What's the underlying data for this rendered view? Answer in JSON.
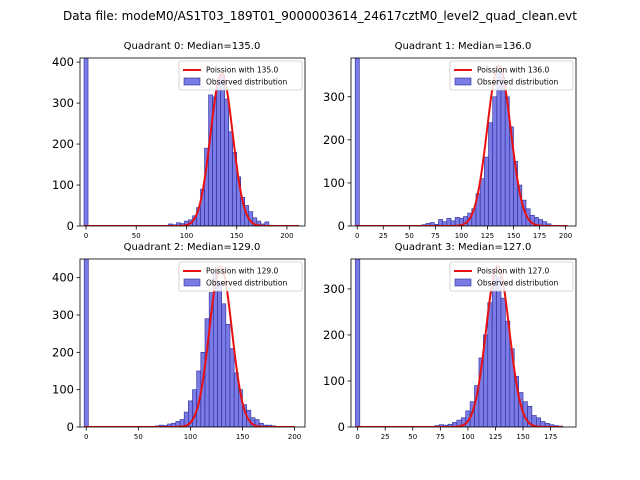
{
  "colors": {
    "bar_fill": "#7b7be6",
    "bar_edge": "#2a2a9a",
    "fit_line": "#e81010",
    "axes": "#000000",
    "background": "#ffffff"
  },
  "chart_data": {
    "suptitle": "Data file: modeM0/AS1T03_189T01_9000003614_24617cztM0_level2_quad_clean.evt",
    "panels": [
      {
        "type": "bar",
        "title": "Quadrant 0: Median=135.0",
        "median": 135.0,
        "xlim": [
          -6,
          218
        ],
        "ylim": [
          0,
          410
        ],
        "xticks": [
          0,
          50,
          100,
          150,
          200
        ],
        "yticks": [
          0,
          100,
          200,
          300,
          400
        ],
        "bin_width": 4,
        "bar_starts": [
          -2,
          82,
          86,
          90,
          94,
          98,
          102,
          106,
          110,
          114,
          118,
          122,
          126,
          130,
          134,
          138,
          142,
          146,
          150,
          154,
          158,
          162,
          166,
          170,
          174,
          178,
          182
        ],
        "bar_heights": [
          410,
          5,
          3,
          8,
          6,
          12,
          15,
          25,
          45,
          90,
          190,
          320,
          315,
          360,
          370,
          310,
          230,
          180,
          120,
          70,
          50,
          35,
          20,
          12,
          5,
          10,
          2
        ],
        "fit_center": 135.0,
        "fit_peak": 372,
        "fit_sigma": 11.0,
        "fit_range": [
          -2,
          212
        ],
        "legend": {
          "fit": "Poission with 135.0",
          "observed": "Observed distribution"
        }
      },
      {
        "type": "bar",
        "title": "Quadrant 1: Median=136.0",
        "median": 136.0,
        "xlim": [
          -6,
          210
        ],
        "ylim": [
          0,
          390
        ],
        "xticks": [
          0,
          25,
          50,
          75,
          100,
          125,
          150,
          175,
          200
        ],
        "yticks": [
          0,
          100,
          200,
          300
        ],
        "bin_width": 4,
        "bar_starts": [
          -2,
          62,
          66,
          70,
          74,
          78,
          82,
          86,
          90,
          94,
          98,
          102,
          106,
          110,
          114,
          118,
          122,
          126,
          130,
          134,
          138,
          142,
          146,
          150,
          154,
          158,
          162,
          166,
          170,
          174,
          178,
          182
        ],
        "bar_heights": [
          390,
          3,
          6,
          8,
          4,
          15,
          10,
          18,
          12,
          20,
          18,
          22,
          30,
          40,
          75,
          110,
          160,
          240,
          300,
          360,
          345,
          300,
          230,
          150,
          95,
          60,
          40,
          25,
          20,
          15,
          10,
          5
        ],
        "fit_center": 136.0,
        "fit_peak": 372,
        "fit_sigma": 11.3,
        "fit_range": [
          -2,
          202
        ],
        "legend": {
          "fit": "Poission with 136.0",
          "observed": "Observed distribution"
        }
      },
      {
        "type": "bar",
        "title": "Quadrant 2: Median=129.0",
        "median": 129.0,
        "xlim": [
          -6,
          210
        ],
        "ylim": [
          0,
          450
        ],
        "xticks": [
          0,
          50,
          100,
          150,
          200
        ],
        "yticks": [
          0,
          100,
          200,
          300,
          400
        ],
        "bin_width": 4,
        "bar_starts": [
          -2,
          66,
          70,
          74,
          78,
          82,
          86,
          90,
          94,
          98,
          102,
          106,
          110,
          114,
          118,
          122,
          126,
          130,
          134,
          138,
          142,
          146,
          150,
          154,
          158,
          162,
          166,
          170,
          174,
          178
        ],
        "bar_heights": [
          450,
          3,
          5,
          4,
          8,
          10,
          15,
          20,
          40,
          70,
          100,
          150,
          200,
          290,
          360,
          410,
          390,
          330,
          275,
          210,
          145,
          100,
          60,
          45,
          25,
          20,
          10,
          5,
          5,
          3
        ],
        "fit_center": 129.0,
        "fit_peak": 430,
        "fit_sigma": 10.8,
        "fit_range": [
          -2,
          200
        ],
        "legend": {
          "fit": "Poission with 129.0",
          "observed": "Observed distribution"
        }
      },
      {
        "type": "bar",
        "title": "Quadrant 3: Median=127.0",
        "median": 127.0,
        "xlim": [
          -6,
          198
        ],
        "ylim": [
          0,
          365
        ],
        "xticks": [
          0,
          25,
          50,
          75,
          100,
          125,
          150,
          175
        ],
        "yticks": [
          0,
          100,
          200,
          300
        ],
        "bin_width": 4,
        "bar_starts": [
          -2,
          70,
          74,
          78,
          82,
          86,
          90,
          94,
          98,
          102,
          106,
          110,
          114,
          118,
          122,
          126,
          130,
          134,
          138,
          142,
          146,
          150,
          154,
          158,
          162,
          166,
          170,
          174,
          178,
          182
        ],
        "bar_heights": [
          365,
          3,
          5,
          4,
          6,
          10,
          15,
          20,
          35,
          55,
          90,
          150,
          200,
          270,
          330,
          325,
          280,
          230,
          170,
          110,
          75,
          55,
          45,
          25,
          20,
          12,
          8,
          5,
          3,
          2
        ],
        "fit_center": 127.0,
        "fit_peak": 350,
        "fit_sigma": 10.5,
        "fit_range": [
          -2,
          185
        ],
        "legend": {
          "fit": "Poission with 127.0",
          "observed": "Observed distribution"
        }
      }
    ]
  }
}
